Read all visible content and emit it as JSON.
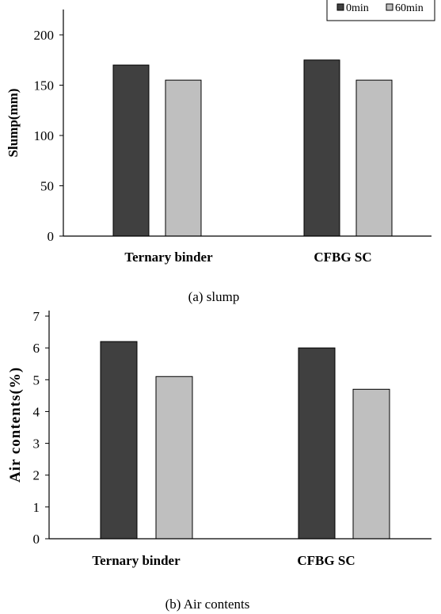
{
  "colors": {
    "s0": "#404040",
    "s1": "#bfbfbf"
  },
  "legend": {
    "labels": [
      "0min",
      "60min"
    ]
  },
  "chart_data": [
    {
      "type": "bar",
      "categories": [
        "Ternary binder",
        "CFBG SC"
      ],
      "series": [
        {
          "name": "0min",
          "values": [
            170,
            175
          ]
        },
        {
          "name": "60min",
          "values": [
            155,
            155
          ]
        }
      ],
      "ylabel": "Slump(mm)",
      "ylim": [
        0,
        200
      ],
      "yticks": [
        "0",
        "50",
        "100",
        "150",
        "200"
      ],
      "legend_position": "top-right",
      "caption": "(a)  slump"
    },
    {
      "type": "bar",
      "categories": [
        "Ternary binder",
        "CFBG SC"
      ],
      "series": [
        {
          "name": "0min",
          "values": [
            6.2,
            6.0
          ]
        },
        {
          "name": "60min",
          "values": [
            5.1,
            4.7
          ]
        }
      ],
      "ylabel": "Air contents(%)",
      "ylim": [
        0,
        7
      ],
      "yticks": [
        "0",
        "1",
        "2",
        "3",
        "4",
        "5",
        "6",
        "7"
      ],
      "caption": "(b)  Air contents"
    }
  ]
}
